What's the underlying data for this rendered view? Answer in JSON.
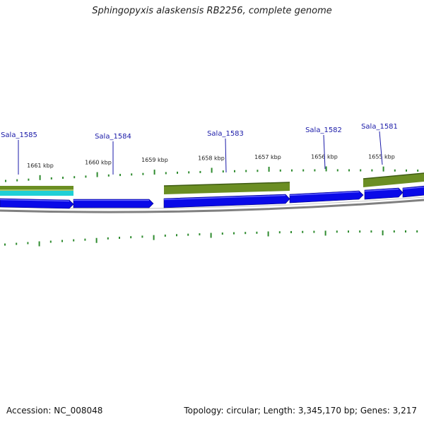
{
  "title": "Sphingopyxis alaskensis RB2256, complete genome",
  "footer": {
    "accession": "Accession: NC_008048",
    "summary": "Topology: circular; Length: 3,345,170 bp; Genes: 3,217"
  },
  "colors": {
    "tick": "#2e8b2e",
    "cds_forward": "#0a0ae8",
    "gene_olive": "#6b8e23",
    "gene_cyan": "#1fd0d6",
    "backbone": "#808080",
    "label": "#1a1aa8"
  },
  "scale": {
    "unit": "kbp",
    "ticks": [
      {
        "label": "1661 kbp",
        "kbp": 1661
      },
      {
        "label": "1660 kbp",
        "kbp": 1660
      },
      {
        "label": "1659 kbp",
        "kbp": 1659
      },
      {
        "label": "1658 kbp",
        "kbp": 1658
      },
      {
        "label": "1657 kbp",
        "kbp": 1657
      },
      {
        "label": "1656 kbp",
        "kbp": 1656
      },
      {
        "label": "1655 kbp",
        "kbp": 1655
      }
    ]
  },
  "genes": [
    {
      "label": "Sala_1585"
    },
    {
      "label": "Sala_1584"
    },
    {
      "label": "Sala_1583"
    },
    {
      "label": "Sala_1582"
    },
    {
      "label": "Sala_1581"
    }
  ]
}
